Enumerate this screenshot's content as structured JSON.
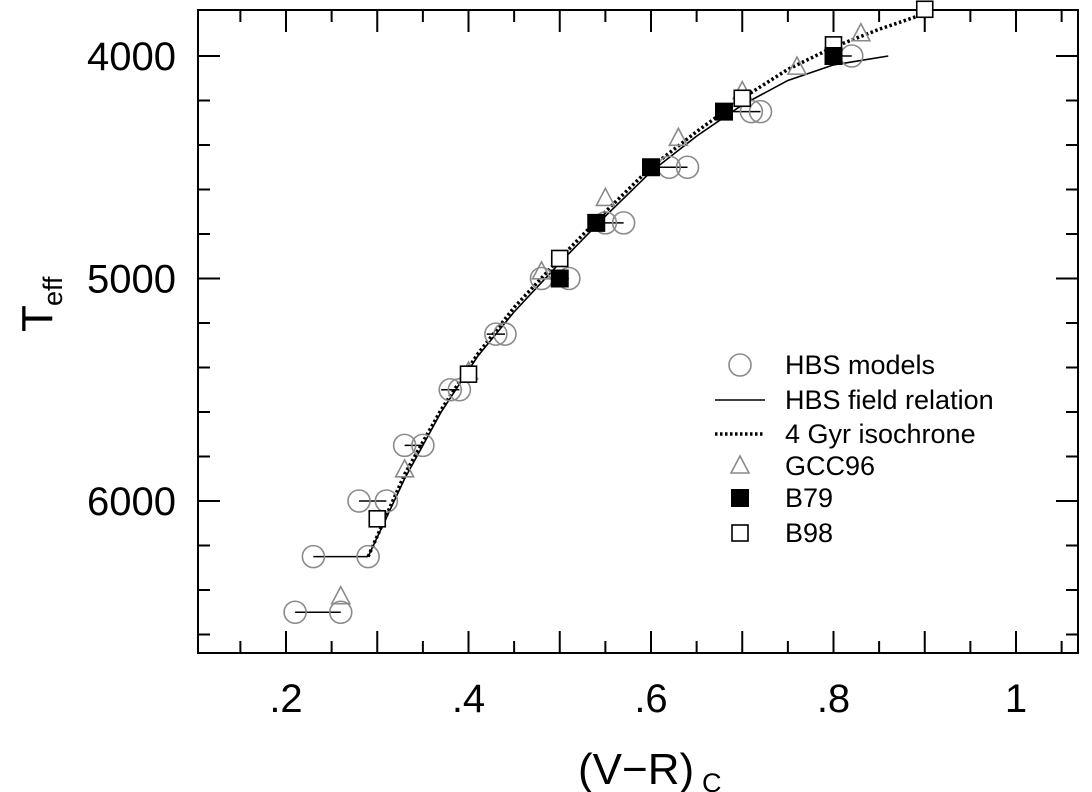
{
  "chart_data": {
    "type": "scatter",
    "xlabel": "(V−R)",
    "xlabel_sub": "C",
    "ylabel": "T",
    "ylabel_sub": "eff",
    "xlim": [
      0.1,
      1.1
    ],
    "ylim": [
      6700,
      3800
    ],
    "y_inverted": true,
    "x_ticks": [
      {
        "value": 0.2,
        "label": ".2"
      },
      {
        "value": 0.4,
        "label": ".4"
      },
      {
        "value": 0.6,
        "label": ".6"
      },
      {
        "value": 0.8,
        "label": ".8"
      },
      {
        "value": 1.0,
        "label": "1"
      }
    ],
    "y_ticks": [
      {
        "value": 4000,
        "label": "4000"
      },
      {
        "value": 5000,
        "label": "5000"
      },
      {
        "value": 6000,
        "label": "6000"
      }
    ],
    "legend_position": "right",
    "series": [
      {
        "name": "HBS models",
        "marker": "open-circle",
        "color": "#8a8a8a",
        "points": [
          {
            "x": 0.82,
            "y": 4000
          },
          {
            "x": 0.72,
            "y": 4250
          },
          {
            "x": 0.71,
            "y": 4250
          },
          {
            "x": 0.64,
            "y": 4500
          },
          {
            "x": 0.62,
            "y": 4500
          },
          {
            "x": 0.57,
            "y": 4750
          },
          {
            "x": 0.55,
            "y": 4750
          },
          {
            "x": 0.51,
            "y": 5000
          },
          {
            "x": 0.48,
            "y": 5000
          },
          {
            "x": 0.44,
            "y": 5250
          },
          {
            "x": 0.43,
            "y": 5250
          },
          {
            "x": 0.39,
            "y": 5500
          },
          {
            "x": 0.38,
            "y": 5500
          },
          {
            "x": 0.35,
            "y": 5750
          },
          {
            "x": 0.33,
            "y": 5750
          },
          {
            "x": 0.31,
            "y": 6000
          },
          {
            "x": 0.28,
            "y": 6000
          },
          {
            "x": 0.29,
            "y": 6250
          },
          {
            "x": 0.23,
            "y": 6250
          },
          {
            "x": 0.26,
            "y": 6500
          },
          {
            "x": 0.21,
            "y": 6500
          }
        ]
      },
      {
        "name": "HBS field relation",
        "marker": "line",
        "color": "#000000",
        "points": [
          {
            "x": 0.29,
            "y": 6250
          },
          {
            "x": 0.33,
            "y": 5900
          },
          {
            "x": 0.37,
            "y": 5600
          },
          {
            "x": 0.41,
            "y": 5350
          },
          {
            "x": 0.45,
            "y": 5150
          },
          {
            "x": 0.5,
            "y": 4930
          },
          {
            "x": 0.55,
            "y": 4720
          },
          {
            "x": 0.6,
            "y": 4520
          },
          {
            "x": 0.65,
            "y": 4360
          },
          {
            "x": 0.7,
            "y": 4220
          },
          {
            "x": 0.75,
            "y": 4110
          },
          {
            "x": 0.8,
            "y": 4040
          },
          {
            "x": 0.86,
            "y": 4000
          }
        ]
      },
      {
        "name": "4 Gyr isochrone",
        "marker": "dotted-line",
        "color": "#000000",
        "points": [
          {
            "x": 0.29,
            "y": 6250
          },
          {
            "x": 0.33,
            "y": 5880
          },
          {
            "x": 0.37,
            "y": 5590
          },
          {
            "x": 0.41,
            "y": 5340
          },
          {
            "x": 0.45,
            "y": 5130
          },
          {
            "x": 0.5,
            "y": 4910
          },
          {
            "x": 0.55,
            "y": 4700
          },
          {
            "x": 0.6,
            "y": 4500
          },
          {
            "x": 0.65,
            "y": 4340
          },
          {
            "x": 0.7,
            "y": 4190
          },
          {
            "x": 0.75,
            "y": 4060
          },
          {
            "x": 0.8,
            "y": 3960
          },
          {
            "x": 0.85,
            "y": 3880
          },
          {
            "x": 0.9,
            "y": 3810
          }
        ]
      },
      {
        "name": "GCC96",
        "marker": "open-triangle",
        "color": "#8a8a8a",
        "points": [
          {
            "x": 0.26,
            "y": 6430
          },
          {
            "x": 0.33,
            "y": 5860
          },
          {
            "x": 0.4,
            "y": 5420
          },
          {
            "x": 0.48,
            "y": 4970
          },
          {
            "x": 0.55,
            "y": 4640
          },
          {
            "x": 0.63,
            "y": 4370
          },
          {
            "x": 0.7,
            "y": 4160
          },
          {
            "x": 0.76,
            "y": 4050
          },
          {
            "x": 0.83,
            "y": 3900
          }
        ]
      },
      {
        "name": "B79",
        "marker": "filled-square",
        "color": "#000000",
        "points": [
          {
            "x": 0.5,
            "y": 5000
          },
          {
            "x": 0.54,
            "y": 4750
          },
          {
            "x": 0.6,
            "y": 4500
          },
          {
            "x": 0.68,
            "y": 4250
          },
          {
            "x": 0.8,
            "y": 4000
          }
        ]
      },
      {
        "name": "B98",
        "marker": "open-square",
        "color": "#000000",
        "points": [
          {
            "x": 0.3,
            "y": 6080
          },
          {
            "x": 0.4,
            "y": 5430
          },
          {
            "x": 0.5,
            "y": 4910
          },
          {
            "x": 0.7,
            "y": 4190
          },
          {
            "x": 0.8,
            "y": 3950
          },
          {
            "x": 0.9,
            "y": 3790
          }
        ]
      }
    ],
    "error_bars": [
      {
        "x1": 0.82,
        "x2": 0.8,
        "y": 4000
      },
      {
        "x1": 0.72,
        "x2": 0.68,
        "y": 4250
      },
      {
        "x1": 0.64,
        "x2": 0.6,
        "y": 4500
      },
      {
        "x1": 0.57,
        "x2": 0.54,
        "y": 4750
      },
      {
        "x1": 0.51,
        "x2": 0.48,
        "y": 5000
      },
      {
        "x1": 0.44,
        "x2": 0.42,
        "y": 5250
      },
      {
        "x1": 0.39,
        "x2": 0.37,
        "y": 5500
      },
      {
        "x1": 0.35,
        "x2": 0.33,
        "y": 5750
      },
      {
        "x1": 0.31,
        "x2": 0.28,
        "y": 6000
      },
      {
        "x1": 0.29,
        "x2": 0.23,
        "y": 6250
      },
      {
        "x1": 0.26,
        "x2": 0.21,
        "y": 6500
      }
    ]
  }
}
